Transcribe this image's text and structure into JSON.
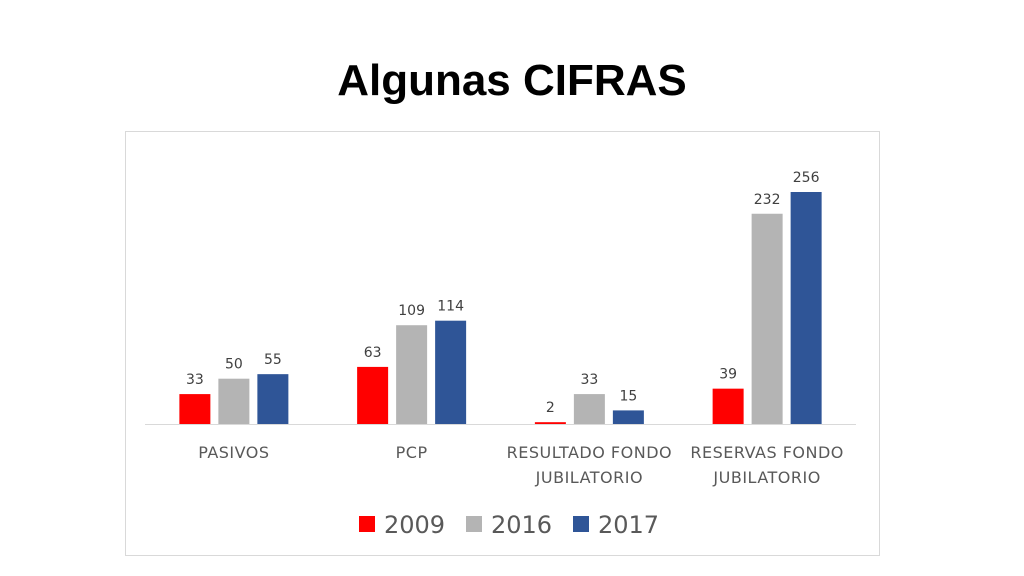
{
  "slide": {
    "title": "Algunas CIFRAS"
  },
  "chart_data": {
    "type": "bar",
    "title": "",
    "xlabel": "",
    "ylabel": "",
    "ylim": [
      0,
      256
    ],
    "grid": false,
    "legend_position": "bottom",
    "categories": [
      [
        "PASIVOS"
      ],
      [
        "PCP"
      ],
      [
        "RESULTADO FONDO",
        "JUBILATORIO"
      ],
      [
        "RESERVAS FONDO",
        "JUBILATORIO"
      ]
    ],
    "series": [
      {
        "name": "2009",
        "color": "#ff0000",
        "values": [
          33,
          63,
          2,
          39
        ]
      },
      {
        "name": "2016",
        "color": "#b4b4b4",
        "values": [
          50,
          109,
          33,
          232
        ]
      },
      {
        "name": "2017",
        "color": "#2f5597",
        "values": [
          55,
          114,
          15,
          256
        ]
      }
    ]
  }
}
